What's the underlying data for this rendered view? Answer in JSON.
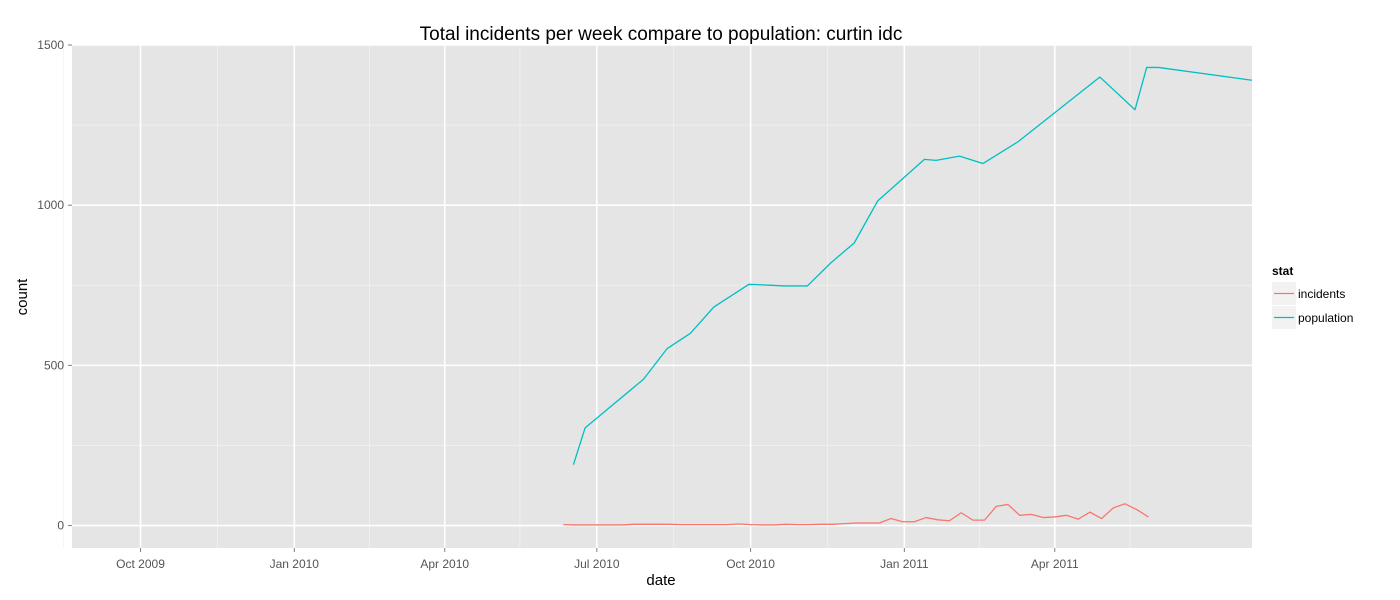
{
  "chart_data": {
    "type": "line",
    "title": "Total incidents per week compare to population: curtin idc",
    "xlabel": "date",
    "ylabel": "count",
    "xlim": [
      "2009-08-21",
      "2011-07-28"
    ],
    "ylim": [
      -70,
      1500
    ],
    "x_ticks": [
      {
        "date": "2009-10-01",
        "label": "Oct 2009"
      },
      {
        "date": "2010-01-01",
        "label": "Jan 2010"
      },
      {
        "date": "2010-04-01",
        "label": "Apr 2010"
      },
      {
        "date": "2010-07-01",
        "label": "Jul 2010"
      },
      {
        "date": "2010-10-01",
        "label": "Oct 2010"
      },
      {
        "date": "2011-01-01",
        "label": "Jan 2011"
      },
      {
        "date": "2011-04-01",
        "label": "Apr 2011"
      }
    ],
    "x_minor_ticks": [
      "2009-08-16",
      "2009-11-16",
      "2010-02-15",
      "2010-05-16",
      "2010-08-16",
      "2010-11-16",
      "2011-02-15",
      "2011-05-16"
    ],
    "y_ticks": [
      0,
      500,
      1000,
      1500
    ],
    "y_minor_ticks": [
      250,
      750,
      1250
    ],
    "grid": true,
    "legend": {
      "title": "stat",
      "position": "right"
    },
    "colors": {
      "panel": "#e5e5e5",
      "grid": "#ffffff",
      "grid_minor": "#f2f2f2"
    },
    "series": [
      {
        "name": "incidents",
        "color": "#f8766d",
        "points": [
          [
            "2010-06-11",
            3
          ],
          [
            "2010-06-18",
            2
          ],
          [
            "2010-06-25",
            2
          ],
          [
            "2010-07-02",
            2
          ],
          [
            "2010-07-09",
            2
          ],
          [
            "2010-07-16",
            2
          ],
          [
            "2010-07-23",
            4
          ],
          [
            "2010-07-30",
            4
          ],
          [
            "2010-08-06",
            4
          ],
          [
            "2010-08-13",
            4
          ],
          [
            "2010-08-20",
            3
          ],
          [
            "2010-08-27",
            3
          ],
          [
            "2010-09-03",
            3
          ],
          [
            "2010-09-10",
            3
          ],
          [
            "2010-09-17",
            3
          ],
          [
            "2010-09-24",
            5
          ],
          [
            "2010-10-01",
            3
          ],
          [
            "2010-10-08",
            2
          ],
          [
            "2010-10-15",
            2
          ],
          [
            "2010-10-22",
            4
          ],
          [
            "2010-10-29",
            3
          ],
          [
            "2010-11-05",
            3
          ],
          [
            "2010-11-12",
            4
          ],
          [
            "2010-11-19",
            4
          ],
          [
            "2010-11-26",
            6
          ],
          [
            "2010-12-03",
            8
          ],
          [
            "2010-12-10",
            8
          ],
          [
            "2010-12-17",
            8
          ],
          [
            "2010-12-24",
            22
          ],
          [
            "2010-12-31",
            12
          ],
          [
            "2011-01-07",
            12
          ],
          [
            "2011-01-14",
            25
          ],
          [
            "2011-01-21",
            18
          ],
          [
            "2011-01-28",
            15
          ],
          [
            "2011-02-04",
            40
          ],
          [
            "2011-02-11",
            17
          ],
          [
            "2011-02-18",
            17
          ],
          [
            "2011-02-25",
            60
          ],
          [
            "2011-03-04",
            66
          ],
          [
            "2011-03-11",
            32
          ],
          [
            "2011-03-18",
            35
          ],
          [
            "2011-03-25",
            25
          ],
          [
            "2011-04-01",
            27
          ],
          [
            "2011-04-08",
            32
          ],
          [
            "2011-04-15",
            20
          ],
          [
            "2011-04-22",
            42
          ],
          [
            "2011-04-29",
            22
          ],
          [
            "2011-05-06",
            55
          ],
          [
            "2011-05-13",
            68
          ],
          [
            "2011-05-20",
            50
          ],
          [
            "2011-05-27",
            27
          ]
        ]
      },
      {
        "name": "population",
        "color": "#00bfc4",
        "points": [
          [
            "2010-06-17",
            190
          ],
          [
            "2010-06-24",
            305
          ],
          [
            "2010-07-29",
            457
          ],
          [
            "2010-08-12",
            552
          ],
          [
            "2010-08-26",
            600
          ],
          [
            "2010-09-09",
            682
          ],
          [
            "2010-09-30",
            753
          ],
          [
            "2010-10-14",
            750
          ],
          [
            "2010-10-21",
            748
          ],
          [
            "2010-11-04",
            748
          ],
          [
            "2010-11-18",
            820
          ],
          [
            "2010-12-02",
            882
          ],
          [
            "2010-12-16",
            1013
          ],
          [
            "2011-01-13",
            1143
          ],
          [
            "2011-01-20",
            1140
          ],
          [
            "2011-02-03",
            1153
          ],
          [
            "2011-02-17",
            1130
          ],
          [
            "2011-03-10",
            1198
          ],
          [
            "2011-04-28",
            1400
          ],
          [
            "2011-05-19",
            1298
          ],
          [
            "2011-05-26",
            1430
          ],
          [
            "2011-06-02",
            1430
          ],
          [
            "2011-07-28",
            1390
          ]
        ]
      }
    ]
  }
}
